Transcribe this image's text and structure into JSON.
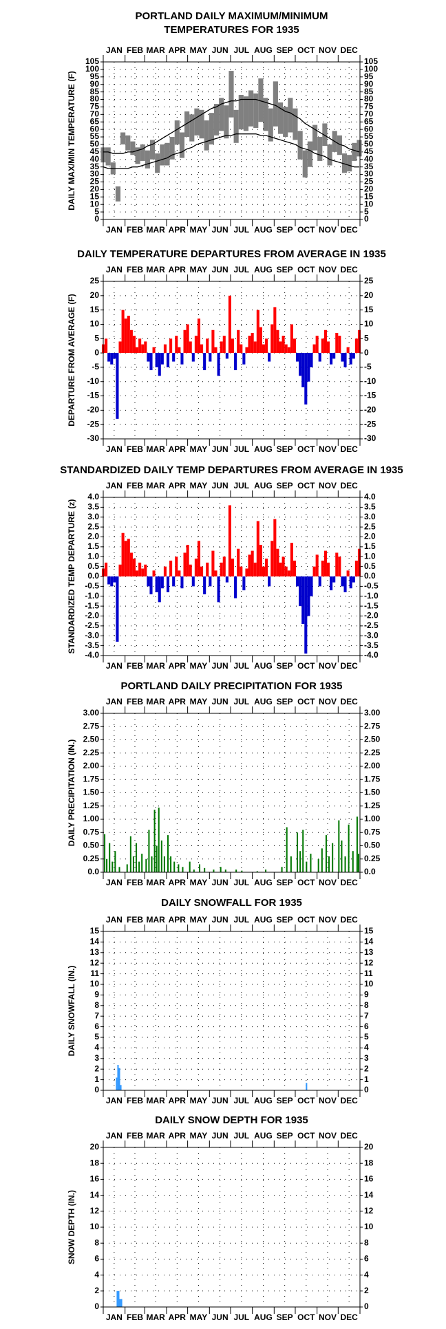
{
  "months": [
    "JAN",
    "FEB",
    "MAR",
    "APR",
    "MAY",
    "JUN",
    "JUL",
    "AUG",
    "SEP",
    "OCT",
    "NOV",
    "DEC"
  ],
  "month_ticks": [
    1,
    32,
    60,
    91,
    121,
    152,
    182,
    213,
    244,
    274,
    305,
    335,
    366
  ],
  "chart_data": [
    {
      "type": "range",
      "title": [
        "PORTLAND DAILY MAXIMUM/MINIMUM",
        "TEMPERATURES FOR 1935"
      ],
      "y_label": "DAILY MAX/MIN TEMPERATURE (F)",
      "x": [
        1,
        8,
        15,
        22,
        29,
        36,
        43,
        50,
        57,
        64,
        71,
        78,
        85,
        92,
        99,
        106,
        113,
        120,
        127,
        134,
        141,
        148,
        155,
        162,
        169,
        176,
        183,
        190,
        197,
        204,
        211,
        218,
        225,
        232,
        239,
        246,
        253,
        260,
        267,
        274,
        281,
        288,
        295,
        302,
        309,
        316,
        323,
        330,
        337,
        344,
        351,
        358,
        365
      ],
      "high": [
        48,
        48,
        38,
        22,
        58,
        56,
        52,
        48,
        50,
        46,
        53,
        44,
        50,
        51,
        55,
        66,
        58,
        72,
        70,
        74,
        73,
        66,
        71,
        77,
        81,
        76,
        99,
        73,
        83,
        82,
        86,
        84,
        94,
        81,
        74,
        92,
        78,
        75,
        81,
        74,
        59,
        46,
        52,
        63,
        55,
        64,
        50,
        59,
        56,
        44,
        43,
        51,
        53
      ],
      "low": [
        38,
        36,
        30,
        12,
        50,
        46,
        43,
        37,
        39,
        34,
        40,
        31,
        36,
        36,
        40,
        50,
        41,
        55,
        52,
        56,
        54,
        46,
        50,
        56,
        59,
        54,
        68,
        51,
        60,
        59,
        62,
        61,
        65,
        59,
        52,
        62,
        57,
        55,
        58,
        53,
        40,
        28,
        35,
        46,
        39,
        49,
        36,
        45,
        43,
        31,
        32,
        39,
        42
      ],
      "normal_high": [
        45,
        45,
        44,
        44,
        44,
        45,
        45,
        46,
        47,
        49,
        50,
        52,
        54,
        56,
        58,
        60,
        62,
        64,
        66,
        68,
        70,
        72,
        74,
        75,
        77,
        78,
        79,
        79,
        80,
        80,
        80,
        80,
        79,
        78,
        77,
        76,
        74,
        72,
        71,
        69,
        67,
        64,
        62,
        60,
        58,
        56,
        54,
        52,
        50,
        49,
        47,
        46,
        45
      ],
      "normal_low": [
        35,
        34,
        34,
        34,
        34,
        34,
        35,
        35,
        36,
        37,
        38,
        39,
        40,
        41,
        43,
        44,
        45,
        47,
        48,
        50,
        51,
        52,
        53,
        54,
        55,
        56,
        56,
        57,
        57,
        57,
        57,
        57,
        56,
        56,
        55,
        54,
        53,
        52,
        51,
        50,
        48,
        47,
        46,
        44,
        43,
        42,
        40,
        39,
        38,
        37,
        36,
        35,
        35
      ],
      "color": "#808080",
      "normal_color": "#000000",
      "xlim": [
        1,
        366
      ],
      "ylim": [
        0,
        105
      ],
      "yticks": [
        0,
        5,
        10,
        15,
        20,
        25,
        30,
        35,
        40,
        45,
        50,
        55,
        60,
        65,
        70,
        75,
        80,
        85,
        90,
        95,
        100,
        105
      ],
      "grid": true
    },
    {
      "type": "bar",
      "title": "DAILY TEMPERATURE DEPARTURES FROM AVERAGE IN 1935",
      "y_label": "DEPARTURE FROM AVERAGE (F)",
      "x": [
        1,
        5,
        9,
        13,
        17,
        21,
        25,
        29,
        33,
        37,
        41,
        45,
        49,
        53,
        57,
        61,
        65,
        69,
        73,
        77,
        81,
        85,
        89,
        93,
        97,
        101,
        105,
        109,
        113,
        117,
        121,
        125,
        129,
        133,
        137,
        141,
        145,
        149,
        153,
        157,
        161,
        165,
        169,
        173,
        177,
        181,
        185,
        189,
        193,
        197,
        201,
        205,
        209,
        213,
        217,
        221,
        225,
        229,
        233,
        237,
        241,
        245,
        249,
        253,
        257,
        261,
        265,
        269,
        273,
        277,
        281,
        285,
        289,
        293,
        297,
        301,
        305,
        309,
        313,
        317,
        321,
        325,
        329,
        333,
        337,
        341,
        345,
        349,
        353,
        357,
        361,
        365
      ],
      "values": [
        3,
        5,
        -3,
        -4,
        -2,
        -23,
        4,
        15,
        12,
        13,
        8,
        6,
        2,
        5,
        3,
        4,
        -3,
        -6,
        2,
        -5,
        -8,
        -4,
        3,
        -5,
        5,
        -3,
        6,
        2,
        -4,
        8,
        10,
        4,
        -3,
        6,
        12,
        3,
        -6,
        5,
        -3,
        8,
        2,
        -8,
        4,
        6,
        -2,
        20,
        5,
        -6,
        8,
        3,
        -4,
        2,
        6,
        7,
        4,
        15,
        9,
        3,
        5,
        -3,
        10,
        16,
        8,
        4,
        6,
        3,
        2,
        10,
        5,
        -3,
        -8,
        -12,
        -18,
        -10,
        -5,
        3,
        6,
        -3,
        5,
        8,
        4,
        -4,
        -2,
        7,
        6,
        -3,
        -5,
        2,
        -4,
        -2,
        5,
        8
      ],
      "pos_color": "#ff0000",
      "neg_color": "#0000cc",
      "xlim": [
        1,
        366
      ],
      "ylim": [
        -30,
        25
      ],
      "yticks": [
        -30,
        -25,
        -20,
        -15,
        -10,
        -5,
        0,
        5,
        10,
        15,
        20,
        25
      ],
      "grid": true
    },
    {
      "type": "bar",
      "title": "STANDARDIZED DAILY TEMP DEPARTURES FROM AVERAGE IN 1935",
      "y_label": "STANDARDIZED TEMP DEPARTURE (z)",
      "x": [
        1,
        5,
        9,
        13,
        17,
        21,
        25,
        29,
        33,
        37,
        41,
        45,
        49,
        53,
        57,
        61,
        65,
        69,
        73,
        77,
        81,
        85,
        89,
        93,
        97,
        101,
        105,
        109,
        113,
        117,
        121,
        125,
        129,
        133,
        137,
        141,
        145,
        149,
        153,
        157,
        161,
        165,
        169,
        173,
        177,
        181,
        185,
        189,
        193,
        197,
        201,
        205,
        209,
        213,
        217,
        221,
        225,
        229,
        233,
        237,
        241,
        245,
        249,
        253,
        257,
        261,
        265,
        269,
        273,
        277,
        281,
        285,
        289,
        293,
        297,
        301,
        305,
        309,
        313,
        317,
        321,
        325,
        329,
        333,
        337,
        341,
        345,
        349,
        353,
        357,
        361,
        365
      ],
      "values": [
        0.4,
        0.7,
        -0.4,
        -0.5,
        -0.3,
        -3.3,
        0.6,
        2.2,
        1.8,
        1.9,
        1.2,
        0.9,
        0.3,
        0.7,
        0.4,
        0.6,
        -0.5,
        -0.9,
        0.3,
        -0.8,
        -1.3,
        -0.6,
        0.5,
        -0.8,
        0.8,
        -0.5,
        1.0,
        0.3,
        -0.6,
        1.2,
        1.6,
        0.6,
        -0.5,
        0.9,
        1.8,
        0.5,
        -0.9,
        0.7,
        -0.5,
        1.3,
        0.3,
        -1.3,
        0.7,
        1.0,
        -0.3,
        3.6,
        0.9,
        -1.1,
        1.4,
        0.5,
        -0.7,
        0.4,
        1.1,
        1.3,
        0.7,
        2.8,
        1.6,
        0.5,
        0.9,
        -0.5,
        1.8,
        2.9,
        1.4,
        0.7,
        1.0,
        0.5,
        0.3,
        1.7,
        0.8,
        -0.5,
        -1.5,
        -2.4,
        -3.9,
        -2.0,
        -1.0,
        0.5,
        1.1,
        -0.5,
        0.8,
        1.3,
        0.7,
        -0.7,
        -0.3,
        1.2,
        1.0,
        -0.5,
        -0.8,
        0.3,
        -0.6,
        -0.3,
        0.8,
        1.4
      ],
      "pos_color": "#ff0000",
      "neg_color": "#0000cc",
      "xlim": [
        1,
        366
      ],
      "ylim": [
        -4,
        4
      ],
      "yticks": [
        {
          "value": -4,
          "label": "-4.0"
        },
        -3.5,
        {
          "value": -3,
          "label": "-3.0"
        },
        -2.5,
        {
          "value": -2,
          "label": "-2.0"
        },
        -1.5,
        {
          "value": -1,
          "label": "-1.0"
        },
        -0.5,
        {
          "value": 0,
          "label": "0.0"
        },
        0.5,
        {
          "value": 1,
          "label": "1.0"
        },
        1.5,
        {
          "value": 2,
          "label": "2.0"
        },
        2.5,
        {
          "value": 3,
          "label": "3.0"
        },
        3.5,
        {
          "value": 4,
          "label": "4.0"
        }
      ],
      "grid": true
    },
    {
      "type": "bar",
      "title": "PORTLAND DAILY PRECIPITATION FOR 1935",
      "y_label": "DAILY PRECIPITATION (IN.)",
      "x": [
        3,
        6,
        10,
        14,
        18,
        24,
        35,
        40,
        44,
        48,
        52,
        56,
        62,
        66,
        70,
        74,
        77,
        80,
        84,
        88,
        93,
        97,
        102,
        108,
        114,
        124,
        130,
        138,
        145,
        158,
        168,
        175,
        190,
        198,
        220,
        232,
        255,
        262,
        268,
        277,
        281,
        285,
        290,
        296,
        307,
        312,
        318,
        322,
        327,
        336,
        340,
        345,
        350,
        356,
        362,
        364
      ],
      "values": [
        0.72,
        0.25,
        0.55,
        0.2,
        0.4,
        0.1,
        0.15,
        0.68,
        0.3,
        0.55,
        0.2,
        0.35,
        0.25,
        0.8,
        0.3,
        1.18,
        0.5,
        1.22,
        0.6,
        0.3,
        0.7,
        0.3,
        0.2,
        0.15,
        0.1,
        0.2,
        0.05,
        0.15,
        0.08,
        0.05,
        0.1,
        0.05,
        0.05,
        0.03,
        0.02,
        0.05,
        0.1,
        0.85,
        0.3,
        0.75,
        0.4,
        0.8,
        0.2,
        0.35,
        0.25,
        0.45,
        0.7,
        0.3,
        0.55,
        0.98,
        0.6,
        0.3,
        0.9,
        0.4,
        1.05,
        0.35
      ],
      "color": "#007700",
      "xlim": [
        1,
        366
      ],
      "ylim": [
        0,
        3
      ],
      "yticks": [
        {
          "value": 0,
          "label": "0.0"
        },
        0.25,
        {
          "value": 0.5,
          "label": "0.50"
        },
        0.75,
        {
          "value": 1,
          "label": "1.00"
        },
        1.25,
        {
          "value": 1.5,
          "label": "1.50"
        },
        1.75,
        {
          "value": 2,
          "label": "2.00"
        },
        2.25,
        {
          "value": 2.5,
          "label": "2.50"
        },
        2.75,
        {
          "value": 3,
          "label": "3.00"
        }
      ],
      "grid": true
    },
    {
      "type": "bar",
      "title": "DAILY SNOWFALL FOR 1935",
      "y_label": "DAILY SNOWFALL (IN.)",
      "x": [
        20,
        22,
        24,
        26,
        290
      ],
      "values": [
        1.2,
        2.4,
        2.1,
        0.5,
        0.7
      ],
      "color": "#3399ff",
      "xlim": [
        1,
        366
      ],
      "ylim": [
        0,
        15
      ],
      "yticks": [
        0,
        1,
        2,
        3,
        4,
        5,
        6,
        7,
        8,
        9,
        10,
        11,
        12,
        13,
        14,
        15
      ],
      "grid": true
    },
    {
      "type": "bar",
      "title": "DAILY SNOW DEPTH FOR 1935",
      "y_label": "SNOW DEPTH (IN.)",
      "x": [
        21,
        23,
        25,
        27
      ],
      "values": [
        2,
        2,
        1,
        1
      ],
      "color": "#3399ff",
      "xlim": [
        1,
        366
      ],
      "ylim": [
        0,
        20
      ],
      "yticks": [
        0,
        2,
        4,
        6,
        8,
        10,
        12,
        14,
        16,
        18,
        20
      ],
      "grid": true
    }
  ]
}
